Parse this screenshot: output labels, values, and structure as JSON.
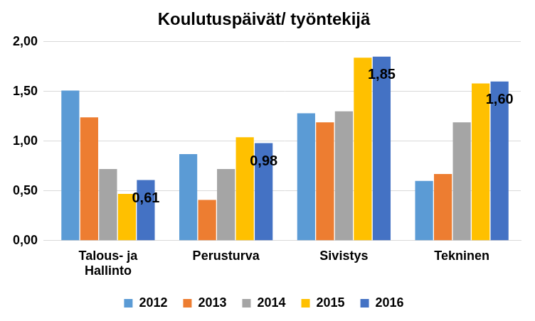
{
  "chart_data": {
    "type": "bar",
    "title": "Koulutuspäivät/ työntekijä",
    "categories": [
      "Talous- ja Hallinto",
      "Perusturva",
      "Sivistys",
      "Tekninen"
    ],
    "series": [
      {
        "name": "2012",
        "color": "#5b9bd5",
        "values": [
          1.51,
          0.87,
          1.28,
          0.6
        ]
      },
      {
        "name": "2013",
        "color": "#ed7d31",
        "values": [
          1.24,
          0.41,
          1.19,
          0.67
        ]
      },
      {
        "name": "2014",
        "color": "#a5a5a5",
        "values": [
          0.72,
          0.72,
          1.3,
          1.19
        ]
      },
      {
        "name": "2015",
        "color": "#ffc000",
        "values": [
          0.47,
          1.04,
          1.84,
          1.58
        ]
      },
      {
        "name": "2016",
        "color": "#4472c4",
        "values": [
          0.61,
          0.98,
          1.85,
          1.6
        ],
        "value_labels": [
          "0,61",
          "0,98",
          "1,85",
          "1,60"
        ]
      }
    ],
    "ylim": [
      0,
      2
    ],
    "yticks": [
      {
        "value": 0,
        "label": "0,00"
      },
      {
        "value": 0.5,
        "label": "0,50"
      },
      {
        "value": 1,
        "label": "1,00"
      },
      {
        "value": 1.5,
        "label": "1,50"
      },
      {
        "value": 2,
        "label": "2,00"
      }
    ],
    "grid": true,
    "legend": "bottom"
  }
}
